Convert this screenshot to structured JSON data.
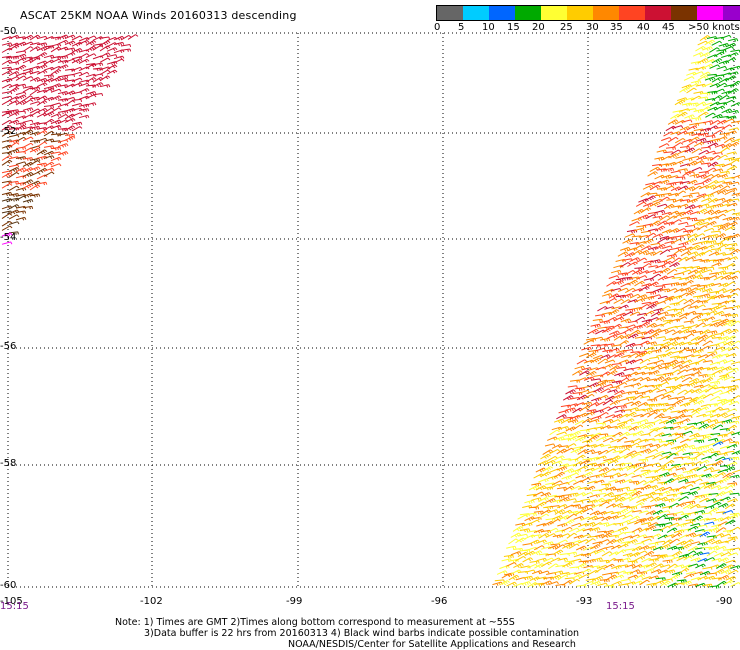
{
  "title": "ASCAT 25KM NOAA Winds 20160313 descending",
  "legend": {
    "colors": [
      "#666666",
      "#00ccff",
      "#0066ff",
      "#00aa00",
      "#ffff33",
      "#ffcc00",
      "#ff8800",
      "#ff4422",
      "#cc1133",
      "#7a3300",
      "#ff00ff",
      "#9900cc"
    ],
    "labels": [
      "0",
      "5",
      "10",
      "15",
      "20",
      "25",
      "30",
      "35",
      "40",
      "45",
      ">50 knots"
    ]
  },
  "map": {
    "lon_range": [
      -105,
      -90
    ],
    "lat_range": [
      -60,
      -50
    ],
    "x_labels": [
      "-105",
      "-102",
      "-99",
      "-96",
      "-93",
      "-90"
    ],
    "y_labels": [
      "-50",
      "-52",
      "-54",
      "-56",
      "-58",
      "-60"
    ],
    "times": [
      "15:15",
      "15:15"
    ]
  },
  "notes": {
    "line1": "Note: 1) Times are GMT 2)Times along bottom correspond to measurement at ~55S",
    "line2": "3)Data buffer is 22 hrs from 20160313 4) Black wind barbs indicate possible contamination",
    "line3": "NOAA/NESDIS/Center for Satellite Applications and Research"
  }
}
